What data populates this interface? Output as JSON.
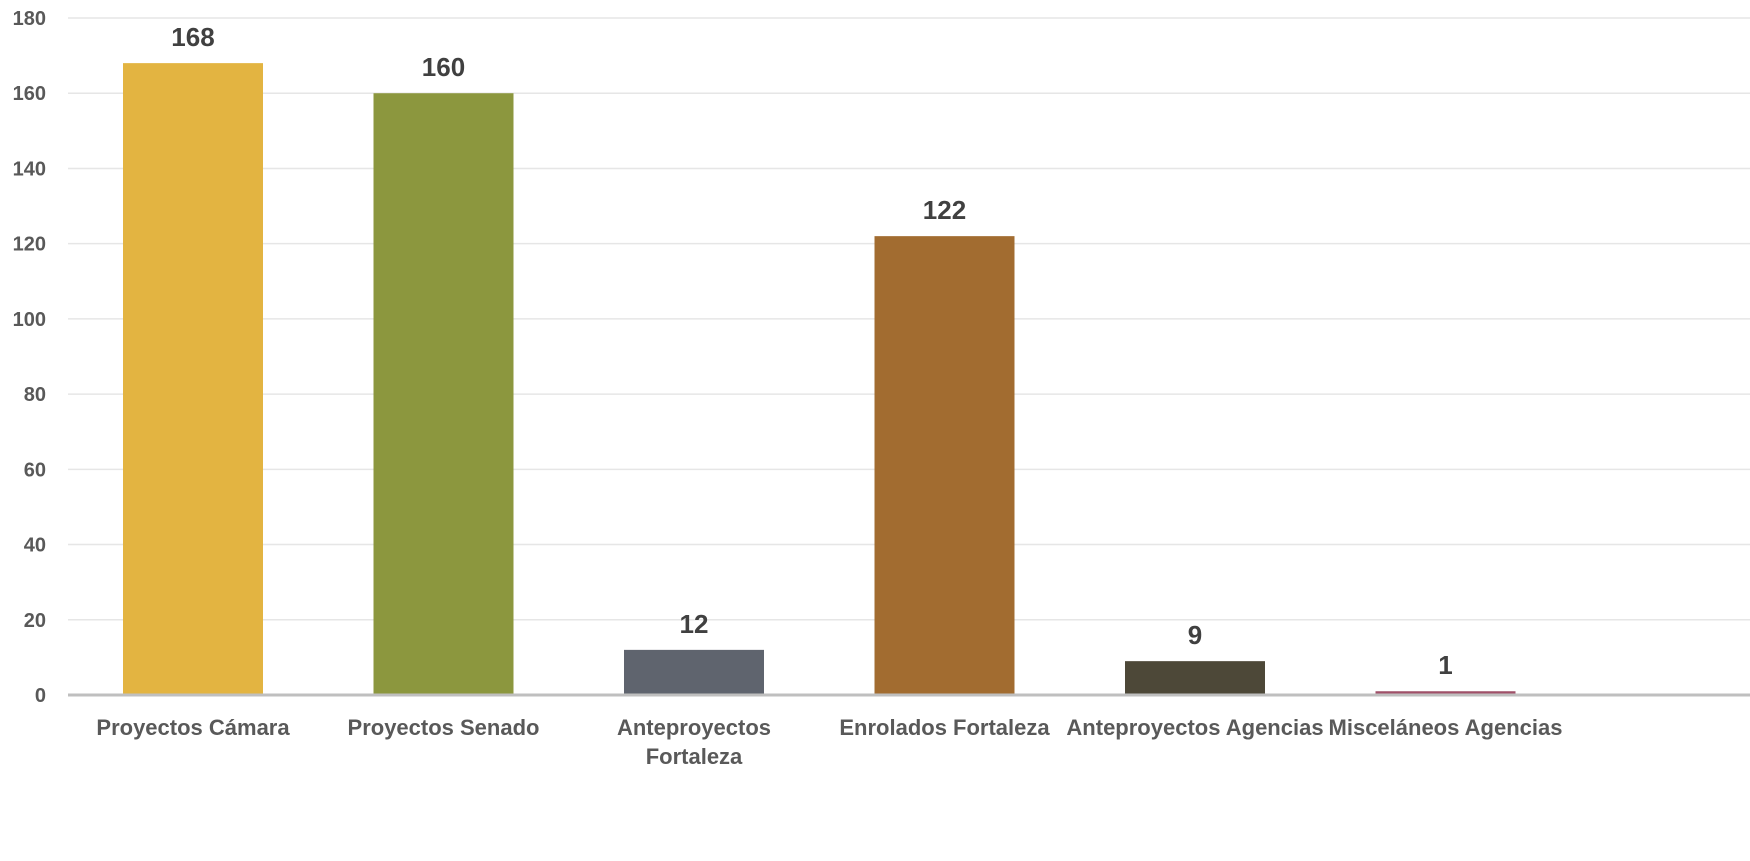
{
  "chart_data": {
    "type": "bar",
    "title": "",
    "xlabel": "",
    "ylabel": "",
    "ylim": [
      0,
      180
    ],
    "yticks": [
      0,
      20,
      40,
      60,
      80,
      100,
      120,
      140,
      160,
      180
    ],
    "grid": true,
    "legend": "none",
    "categories": [
      [
        "Proyectos Cámara"
      ],
      [
        "Proyectos Senado"
      ],
      [
        "Anteproyectos",
        "Fortaleza"
      ],
      [
        "Enrolados Fortaleza"
      ],
      [
        "Anteproyectos Agencias"
      ],
      [
        "Misceláneos Agencias"
      ]
    ],
    "values": [
      168,
      160,
      12,
      122,
      9,
      1
    ],
    "data_labels": [
      "168",
      "160",
      "12",
      "122",
      "9",
      "1"
    ],
    "colors": [
      "#E3B441",
      "#8C973E",
      "#5F646E",
      "#A26C30",
      "#4D4838",
      "#A05069"
    ]
  }
}
